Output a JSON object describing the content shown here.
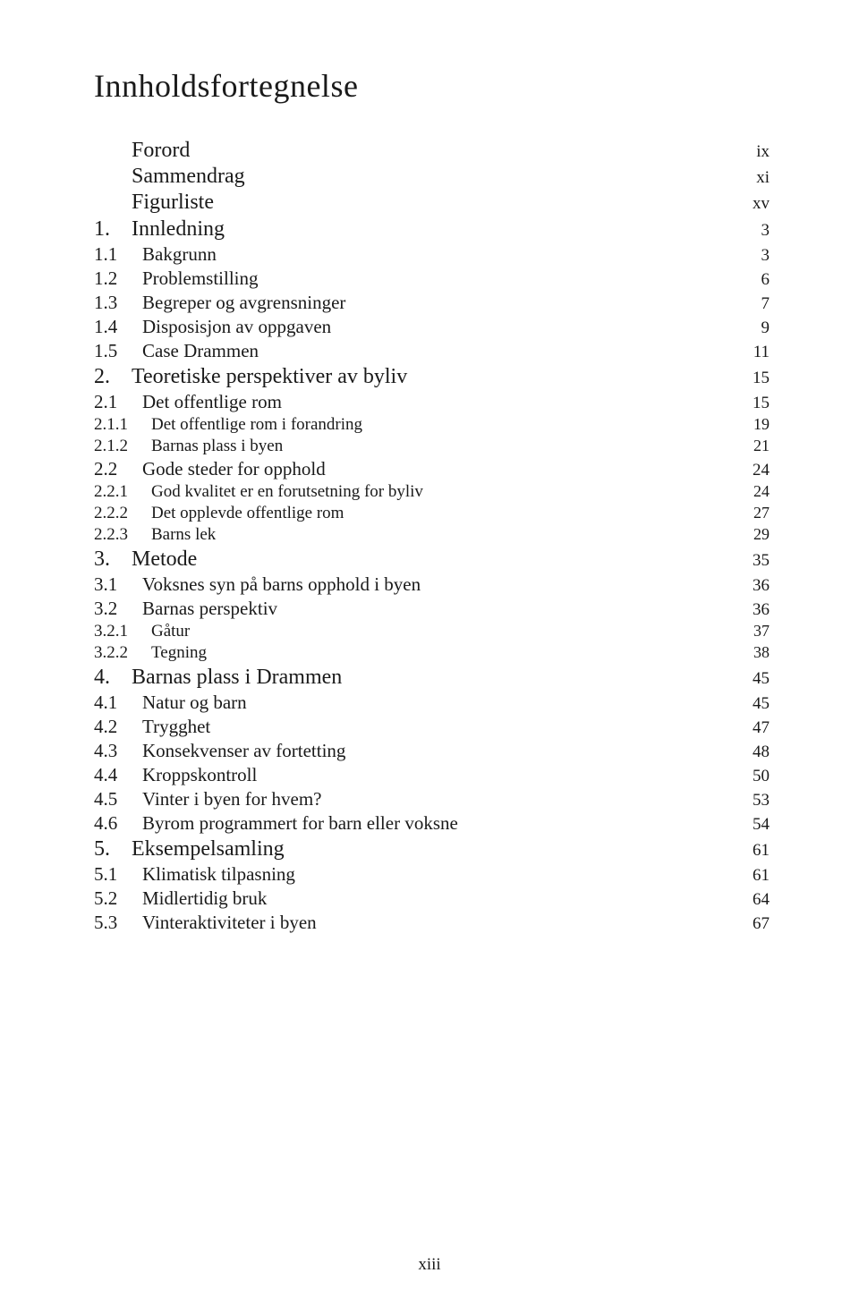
{
  "title": "Innholdsfortegnelse",
  "footer_page": "xiii",
  "entries": [
    {
      "level": "front",
      "text": "Forord",
      "page": "ix"
    },
    {
      "level": "front",
      "text": "Sammendrag",
      "page": "xi"
    },
    {
      "level": "front",
      "text": "Figurliste",
      "page": "xv"
    },
    {
      "level": "chapter",
      "num": "1.",
      "text": "Innledning",
      "page": "3"
    },
    {
      "level": "section",
      "num": "1.1",
      "text": "Bakgrunn",
      "page": "3"
    },
    {
      "level": "section",
      "num": "1.2",
      "text": "Problemstilling",
      "page": "6"
    },
    {
      "level": "section",
      "num": "1.3",
      "text": "Begreper og avgrensninger",
      "page": "7"
    },
    {
      "level": "section",
      "num": "1.4",
      "text": "Disposisjon av oppgaven",
      "page": "9"
    },
    {
      "level": "section",
      "num": "1.5",
      "text": "Case Drammen",
      "page": "11"
    },
    {
      "level": "chapter",
      "num": "2.",
      "text": "Teoretiske perspektiver av byliv",
      "page": "15"
    },
    {
      "level": "section",
      "num": "2.1",
      "text": "Det offentlige rom",
      "page": "15"
    },
    {
      "level": "subsection",
      "num": "2.1.1",
      "text": "Det offentlige rom i forandring",
      "page": "19"
    },
    {
      "level": "subsection",
      "num": "2.1.2",
      "text": "Barnas plass i byen",
      "page": "21"
    },
    {
      "level": "section",
      "num": "2.2",
      "text": "Gode steder for opphold",
      "page": "24"
    },
    {
      "level": "subsection",
      "num": "2.2.1",
      "text": "God kvalitet er en forutsetning for byliv",
      "page": "24"
    },
    {
      "level": "subsection",
      "num": "2.2.2",
      "text": "Det opplevde offentlige rom",
      "page": "27"
    },
    {
      "level": "subsection",
      "num": "2.2.3",
      "text": "Barns lek",
      "page": "29"
    },
    {
      "level": "chapter",
      "num": "3.",
      "text": "Metode",
      "page": "35"
    },
    {
      "level": "section",
      "num": "3.1",
      "text": "Voksnes syn på barns opphold i byen",
      "page": "36"
    },
    {
      "level": "section",
      "num": "3.2",
      "text": "Barnas perspektiv",
      "page": "36"
    },
    {
      "level": "subsection",
      "num": "3.2.1",
      "text": "Gåtur",
      "page": "37"
    },
    {
      "level": "subsection",
      "num": "3.2.2",
      "text": "Tegning",
      "page": "38"
    },
    {
      "level": "chapter",
      "num": "4.",
      "text": "Barnas plass i Drammen",
      "page": "45"
    },
    {
      "level": "section",
      "num": "4.1",
      "text": "Natur og barn",
      "page": "45"
    },
    {
      "level": "section",
      "num": "4.2",
      "text": "Trygghet",
      "page": "47"
    },
    {
      "level": "section",
      "num": "4.3",
      "text": "Konsekvenser av fortetting",
      "page": "48"
    },
    {
      "level": "section",
      "num": "4.4",
      "text": "Kroppskontroll",
      "page": "50"
    },
    {
      "level": "section",
      "num": "4.5",
      "text": "Vinter i byen for hvem?",
      "page": "53"
    },
    {
      "level": "section",
      "num": "4.6",
      "text": "Byrom programmert for barn eller voksne",
      "page": "54"
    },
    {
      "level": "chapter",
      "num": "5.",
      "text": "Eksempelsamling",
      "page": "61"
    },
    {
      "level": "section",
      "num": "5.1",
      "text": "Klimatisk tilpasning",
      "page": "61"
    },
    {
      "level": "section",
      "num": "5.2",
      "text": "Midlertidig bruk",
      "page": "64"
    },
    {
      "level": "section",
      "num": "5.3",
      "text": "Vinteraktiviteter i byen",
      "page": "67"
    }
  ],
  "style": {
    "background_color": "#ffffff",
    "text_color": "#1a1a1a",
    "title_fontsize": 36,
    "front_fontsize": 24,
    "chapter_fontsize": 24,
    "section_fontsize": 21,
    "subsection_fontsize": 19,
    "page_fontsize": 19,
    "font_family": "Baskerville, Georgia, serif"
  }
}
